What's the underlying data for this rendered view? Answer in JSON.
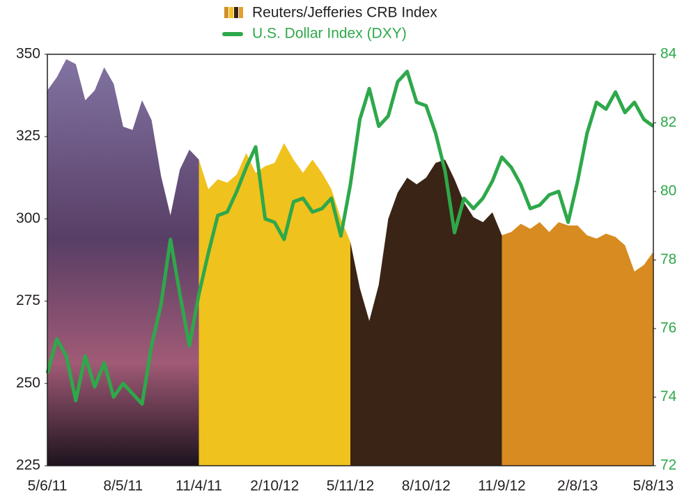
{
  "chart_data": {
    "type": "line",
    "categories": [
      "5/6/11",
      null,
      null,
      null,
      null,
      null,
      null,
      null,
      "8/5/11",
      null,
      null,
      null,
      null,
      null,
      null,
      null,
      "11/4/11",
      null,
      null,
      null,
      null,
      null,
      null,
      null,
      "2/10/12",
      null,
      null,
      null,
      null,
      null,
      null,
      null,
      "5/11/12",
      null,
      null,
      null,
      null,
      null,
      null,
      null,
      "8/10/12",
      null,
      null,
      null,
      null,
      null,
      null,
      null,
      "11/9/12",
      null,
      null,
      null,
      null,
      null,
      null,
      null,
      "2/8/13",
      null,
      null,
      null,
      null,
      null,
      null,
      null,
      "5/8/13"
    ],
    "series": [
      {
        "name": "Reuters/Jefferies CRB Index",
        "type": "area",
        "color": [
          "#4a3960",
          "#efc21e",
          "#3a2416",
          "#d88b20"
        ],
        "values": [
          339,
          343,
          348.5,
          347,
          336,
          339,
          346,
          341,
          328,
          327,
          336,
          330,
          313,
          301,
          315,
          321,
          318,
          309,
          312,
          311,
          313.5,
          320,
          314,
          316,
          317,
          323,
          318,
          314,
          318,
          314,
          309,
          300,
          293,
          279,
          269,
          280,
          300,
          308,
          312.5,
          310.5,
          312.5,
          317,
          318,
          312,
          305,
          300.5,
          299,
          302,
          295,
          296,
          298.5,
          297,
          299,
          296,
          299,
          298,
          298,
          295,
          294,
          295.5,
          294.5,
          292,
          284,
          286,
          290
        ]
      },
      {
        "name": "U.S. Dollar Index (DXY)",
        "type": "line",
        "color": "#2ea84a",
        "axis": "y2",
        "values": [
          74.7,
          75.7,
          75.2,
          73.9,
          75.2,
          74.3,
          75.0,
          74.0,
          74.4,
          74.1,
          73.8,
          75.5,
          76.7,
          78.6,
          77.0,
          75.5,
          77.0,
          78.2,
          79.3,
          79.4,
          80.0,
          80.7,
          81.3,
          79.2,
          79.1,
          78.6,
          79.7,
          79.8,
          79.4,
          79.5,
          79.8,
          78.7,
          80.2,
          82.1,
          83.0,
          81.9,
          82.2,
          83.2,
          83.5,
          82.6,
          82.5,
          81.7,
          80.6,
          78.8,
          79.8,
          79.5,
          79.8,
          80.3,
          81.0,
          80.7,
          80.2,
          79.5,
          79.6,
          79.9,
          80.0,
          79.1,
          80.3,
          81.7,
          82.6,
          82.4,
          82.9,
          82.3,
          82.6,
          82.1,
          81.9
        ]
      }
    ],
    "ylim": [
      225,
      350
    ],
    "yticks": [
      225,
      250,
      275,
      300,
      325,
      350
    ],
    "y2lim": [
      72,
      84
    ],
    "y2ticks": [
      72,
      74,
      76,
      78,
      80,
      82,
      84
    ]
  }
}
